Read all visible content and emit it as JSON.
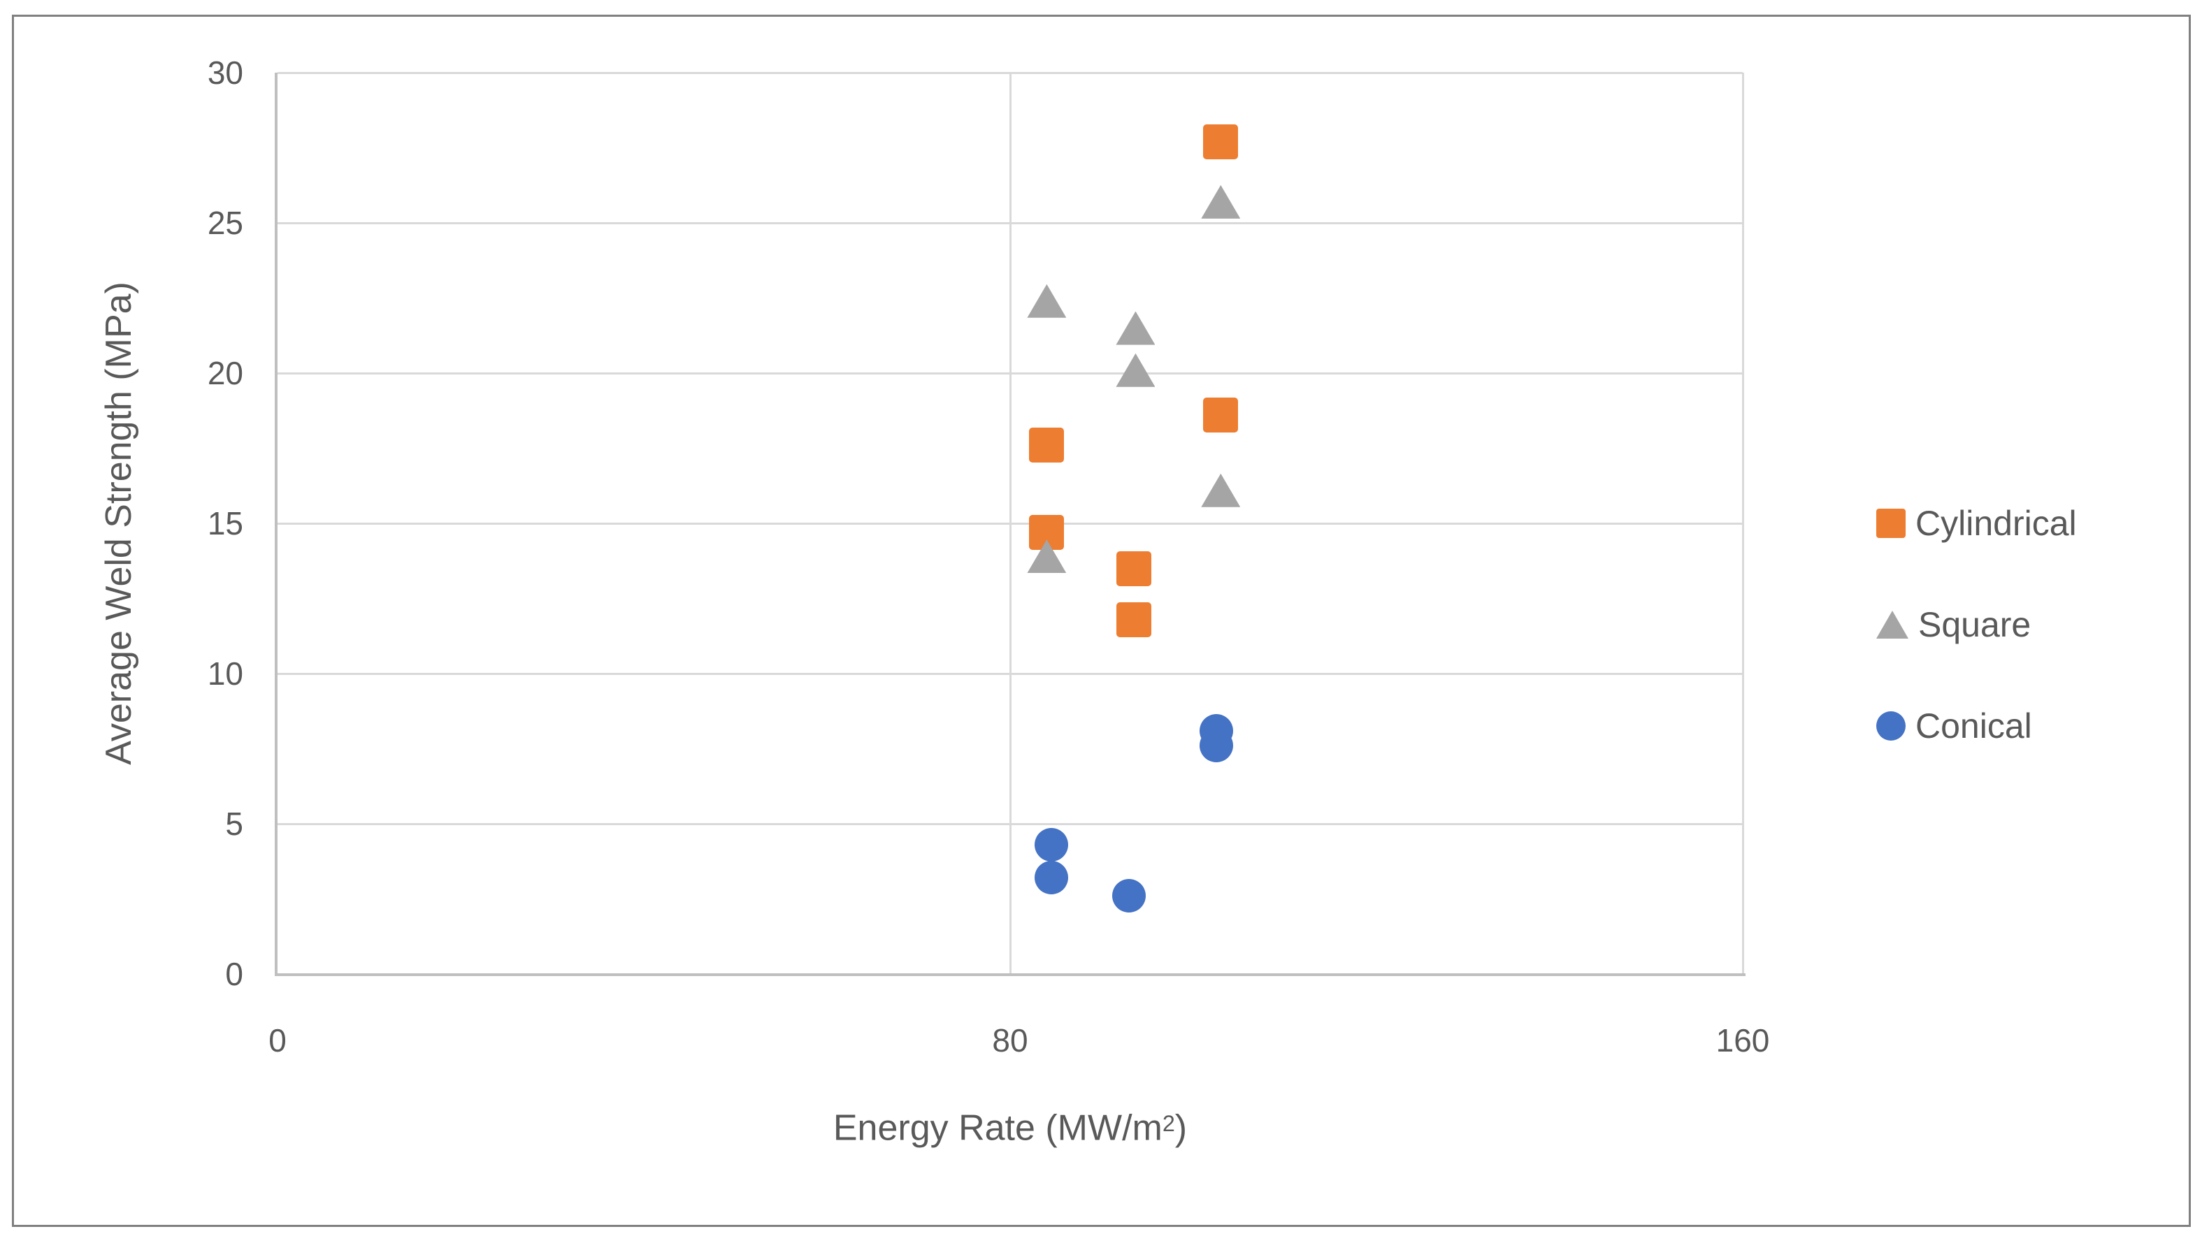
{
  "figure": {
    "background_color": "#FFFFFF",
    "border_color": "#808080"
  },
  "chart_data": {
    "type": "scatter",
    "title": "",
    "xlabel": "Energy Rate (MW/m²)",
    "xlabel_parts": {
      "main": "Energy Rate (MW/m",
      "sup": "2",
      "end": ")"
    },
    "ylabel": "Average Weld Strength (MPa)",
    "xlim": [
      0,
      160
    ],
    "ylim": [
      0,
      30
    ],
    "x_ticks": [
      "0",
      "80",
      "160"
    ],
    "x_tick_values": [
      0,
      80,
      160
    ],
    "y_ticks": [
      "0",
      "5",
      "10",
      "15",
      "20",
      "25",
      "30"
    ],
    "y_tick_values": [
      0,
      5,
      10,
      15,
      20,
      25,
      30
    ],
    "grid": true,
    "gridline_color": "#D9D9D9",
    "axis_line_color": "#BFBFBF",
    "axis_text_color": "#595959",
    "legend_position": "right",
    "series": [
      {
        "name": "Cylindrical",
        "marker": "square",
        "color": "#ED7D31",
        "points": [
          [
            103,
            27.7
          ],
          [
            103,
            18.6
          ],
          [
            84,
            17.6
          ],
          [
            84,
            14.7
          ],
          [
            93.5,
            13.5
          ],
          [
            93.5,
            11.8
          ]
        ]
      },
      {
        "name": "Square",
        "marker": "triangle",
        "color": "#A5A5A5",
        "points": [
          [
            84,
            22.4
          ],
          [
            93.7,
            21.5
          ],
          [
            93.7,
            20.1
          ],
          [
            103,
            25.7
          ],
          [
            103,
            16.1
          ],
          [
            84,
            13.9
          ]
        ]
      },
      {
        "name": "Conical",
        "marker": "circle",
        "color": "#4472C4",
        "points": [
          [
            84.5,
            4.3
          ],
          [
            84.5,
            3.2
          ],
          [
            93,
            2.6
          ],
          [
            102.5,
            8.1
          ],
          [
            102.5,
            7.6
          ]
        ]
      }
    ]
  }
}
